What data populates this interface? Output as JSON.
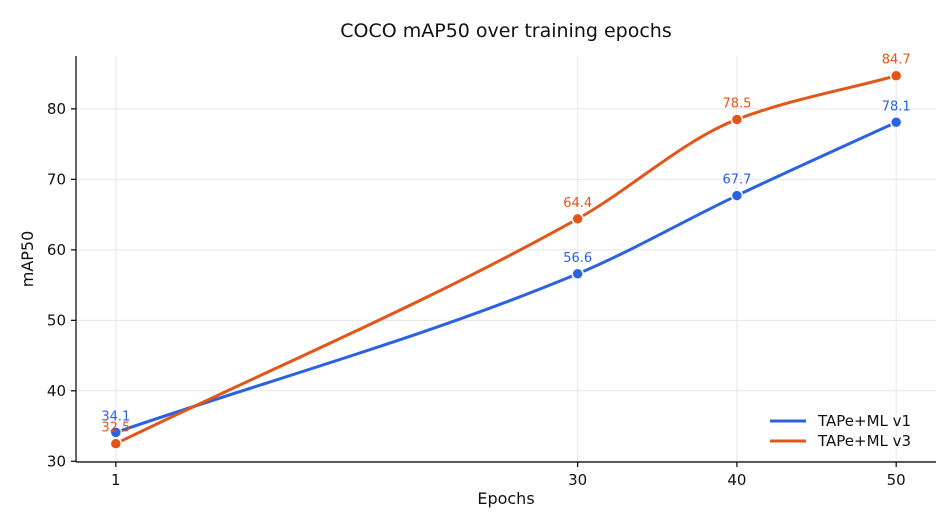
{
  "chart_data": {
    "type": "line",
    "title": "COCO mAP50 over training epochs",
    "xlabel": "Epochs",
    "ylabel": "mAP50",
    "x": [
      1,
      30,
      40,
      50
    ],
    "xticks": [
      1,
      30,
      40,
      50
    ],
    "xlim": [
      -1.5,
      52.5
    ],
    "yticks": [
      30,
      40,
      50,
      60,
      70,
      80
    ],
    "ylim": [
      29.9,
      87.5
    ],
    "grid": true,
    "legend_position": "bottom-right",
    "series": [
      {
        "name": "TAPe+ML v1",
        "color": "#2a62e0",
        "values": [
          34.1,
          56.6,
          67.7,
          78.1
        ],
        "labels": [
          "34.1",
          "56.6",
          "67.7",
          "78.1"
        ]
      },
      {
        "name": "TAPe+ML v3",
        "color": "#e2561a",
        "values": [
          32.5,
          64.4,
          78.5,
          84.7
        ],
        "labels": [
          "32.5",
          "64.4",
          "78.5",
          "84.7"
        ]
      }
    ]
  }
}
